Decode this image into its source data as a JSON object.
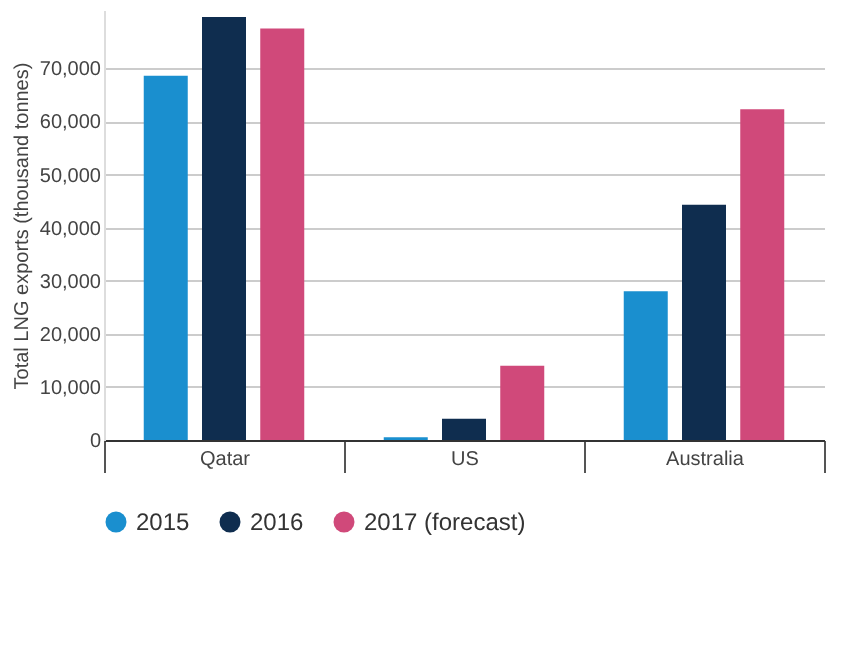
{
  "chart_data": {
    "type": "bar",
    "ylabel": "Total LNG exports (thousand tonnes)",
    "categories": [
      "Qatar",
      "US",
      "Australia"
    ],
    "series": [
      {
        "name": "2015",
        "color": "#1a8fcf",
        "values": [
          68600,
          500,
          28000
        ]
      },
      {
        "name": "2016",
        "color": "#0f2d4f",
        "values": [
          79700,
          4000,
          44300
        ]
      },
      {
        "name": "2017 (forecast)",
        "color": "#d0497a",
        "values": [
          77500,
          14000,
          62300
        ]
      }
    ],
    "ylim": [
      0,
      81000
    ],
    "yticks": [
      0,
      {
        "value": 10000,
        "label": "10,000"
      },
      {
        "value": 20000,
        "label": "20,000"
      },
      {
        "value": 30000,
        "label": "30,000"
      },
      {
        "value": 40000,
        "label": "40,000"
      },
      {
        "value": 50000,
        "label": "50,000"
      },
      {
        "value": 60000,
        "label": "60,000"
      },
      {
        "value": 70000,
        "label": "70,000"
      }
    ],
    "grid": "y",
    "legend": "bottom"
  }
}
